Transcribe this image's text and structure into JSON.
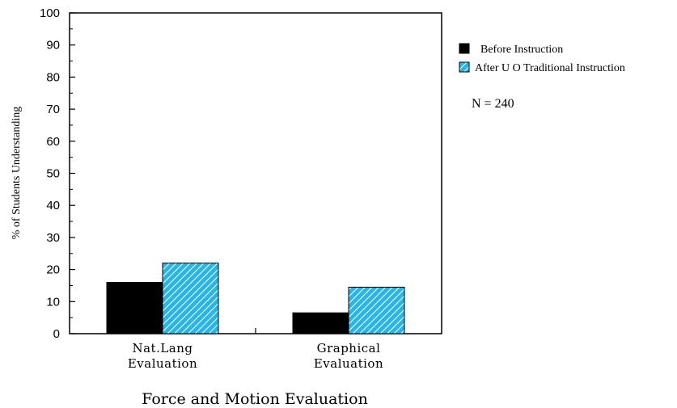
{
  "chart_data": {
    "type": "bar",
    "title": "",
    "xlabel": "Force and Motion Evaluation",
    "ylabel": "% of Students Understanding",
    "ylim": [
      0,
      100
    ],
    "yticks": [
      "0",
      "10",
      "20",
      "30",
      "40",
      "50",
      "60",
      "70",
      "80",
      "90",
      "100"
    ],
    "categories": [
      [
        "Nat.Lang",
        "Evaluation"
      ],
      [
        "Graphical",
        "Evaluation"
      ]
    ],
    "series": [
      {
        "name": "Before Instruction",
        "values": [
          16,
          6.5
        ],
        "color": "#000000",
        "pattern": "solid"
      },
      {
        "name": "After U O Traditional Instruction",
        "values": [
          22,
          14.5
        ],
        "color": "#29b6e6",
        "pattern": "hatched"
      }
    ],
    "legend_position": "top-right",
    "annotation": "N = 240",
    "grid": false
  }
}
